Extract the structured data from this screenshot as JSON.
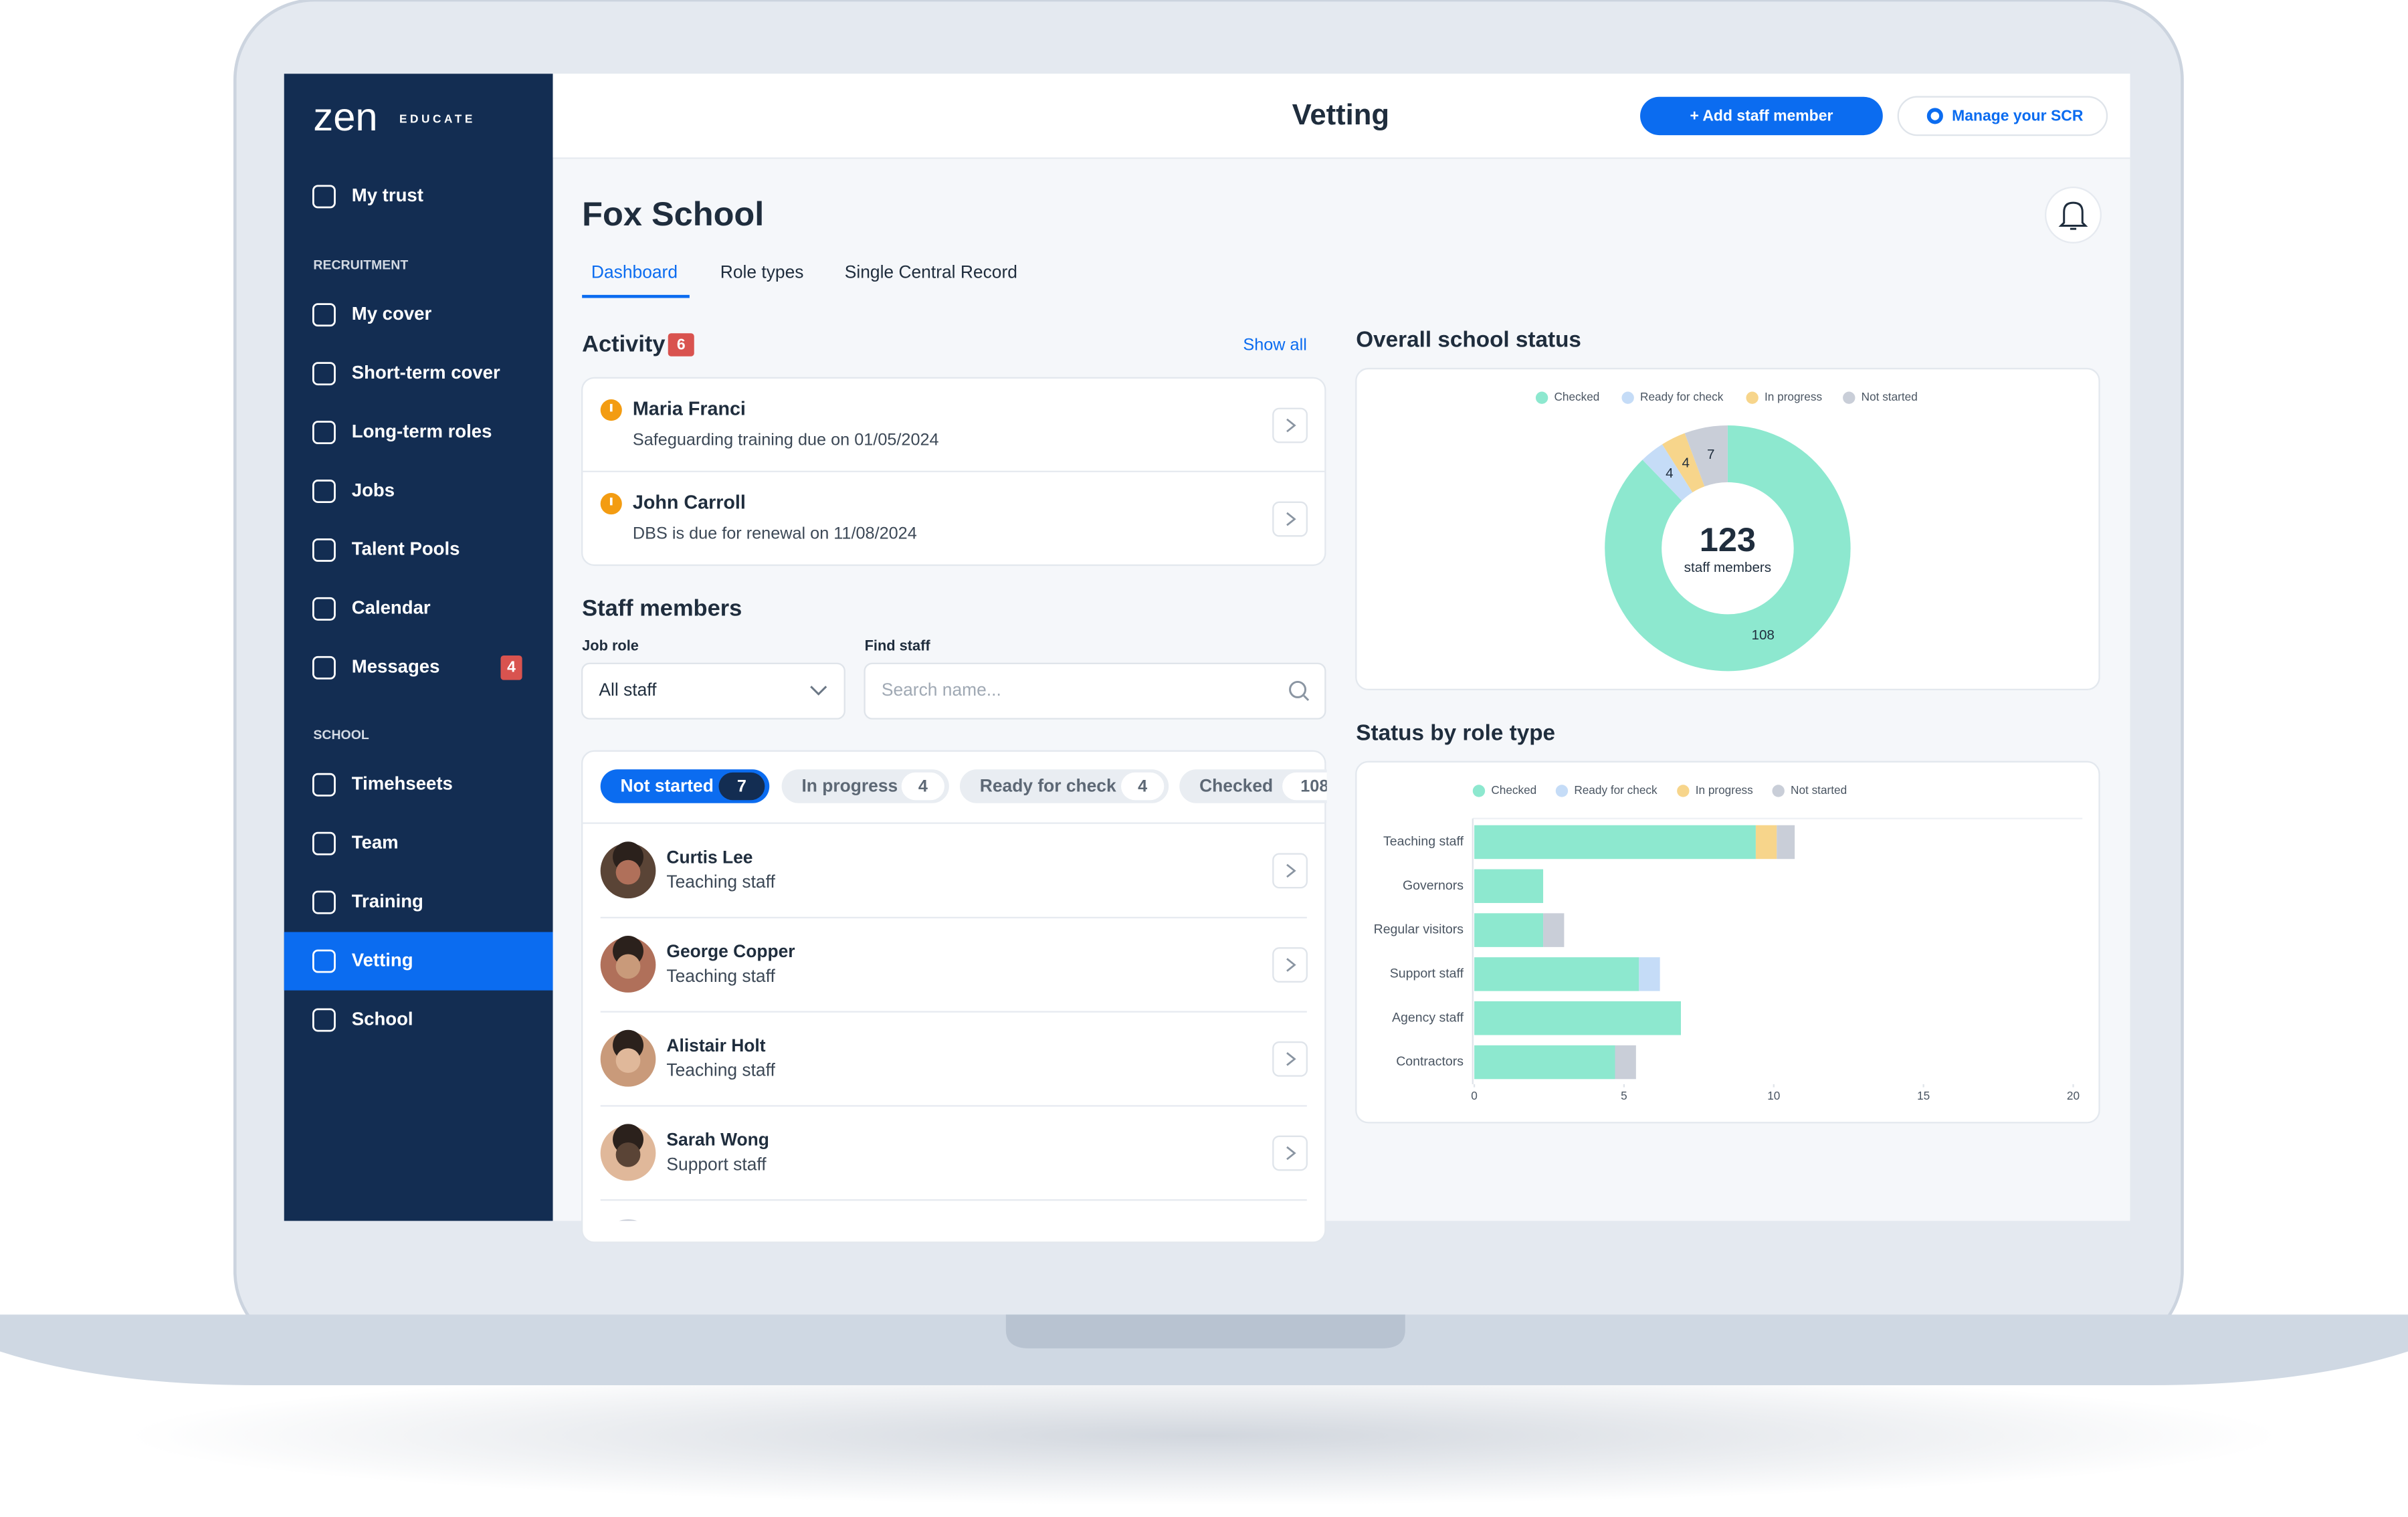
{
  "sidebar": {
    "logo": "zen",
    "logo_tag": "EDUCATE",
    "top": [
      {
        "label": "My trust"
      }
    ],
    "sections": [
      {
        "heading": "RECRUITMENT",
        "items": [
          {
            "label": "My cover"
          },
          {
            "label": "Short-term cover"
          },
          {
            "label": "Long-term roles"
          },
          {
            "label": "Jobs"
          },
          {
            "label": "Talent Pools"
          },
          {
            "label": "Calendar"
          },
          {
            "label": "Messages",
            "badge": 4
          }
        ]
      },
      {
        "heading": "SCHOOL",
        "items": [
          {
            "label": "Timehseets"
          },
          {
            "label": "Team"
          },
          {
            "label": "Training"
          },
          {
            "label": "Vetting",
            "active": true
          },
          {
            "label": "School"
          }
        ]
      }
    ]
  },
  "header": {
    "title": "Vetting",
    "add_button": "+ Add staff member",
    "manage_button": "Manage your SCR"
  },
  "school": "Fox School",
  "tabs": [
    "Dashboard",
    "Role types",
    "Single Central Record"
  ],
  "activity": {
    "title": "Activity",
    "count": 6,
    "show_all": "Show all",
    "items": [
      {
        "name": "Maria Franci",
        "detail": "Safeguarding training due on 01/05/2024"
      },
      {
        "name": "John Carroll",
        "detail": "DBS is due for renewal on 11/08/2024"
      }
    ]
  },
  "staff": {
    "title": "Staff members",
    "job_role_label": "Job role",
    "job_role_value": "All staff",
    "find_label": "Find staff",
    "search_placeholder": "Search name...",
    "filters": [
      {
        "label": "Not started",
        "count": 7
      },
      {
        "label": "In progress",
        "count": 4
      },
      {
        "label": "Ready for check",
        "count": 4
      },
      {
        "label": "Checked",
        "count": 108
      }
    ],
    "people": [
      {
        "name": "Curtis Lee",
        "role": "Teaching staff"
      },
      {
        "name": "George Copper",
        "role": "Teaching staff"
      },
      {
        "name": "Alistair Holt",
        "role": "Teaching staff"
      },
      {
        "name": "Sarah Wong",
        "role": "Support staff"
      }
    ]
  },
  "overall_status": {
    "type": "donut",
    "title": "Overall school status",
    "total": 123,
    "total_label": "staff members",
    "series": [
      {
        "name": "Checked",
        "color": "#8de8cf",
        "value": 108
      },
      {
        "name": "Ready for check",
        "color": "#c5dcf7",
        "value": 4
      },
      {
        "name": "In progress",
        "color": "#f7d58b",
        "value": 4
      },
      {
        "name": "Not started",
        "color": "#c9ced8",
        "value": 7
      }
    ]
  },
  "role_status": {
    "type": "stacked-bar",
    "orientation": "horizontal",
    "title": "Status by role type",
    "categories": [
      "Teaching staff",
      "Governors",
      "Regular visitors",
      "Support staff",
      "Agency staff",
      "Contractors"
    ],
    "series": [
      {
        "name": "Checked",
        "color": "#8de8cf",
        "values": [
          9.4,
          2.3,
          2.3,
          5.5,
          6.9,
          4.7
        ]
      },
      {
        "name": "Ready for check",
        "color": "#c5dcf7",
        "values": [
          0,
          0,
          0,
          0.7,
          0,
          0
        ]
      },
      {
        "name": "In progress",
        "color": "#f7d58b",
        "values": [
          0.7,
          0,
          0,
          0,
          0,
          0
        ]
      },
      {
        "name": "Not started",
        "color": "#c9ced8",
        "values": [
          0.6,
          0,
          0.7,
          0,
          0,
          0.7
        ]
      }
    ],
    "xlim": [
      0,
      20
    ],
    "xticks": [
      0,
      5,
      10,
      15,
      20
    ]
  }
}
